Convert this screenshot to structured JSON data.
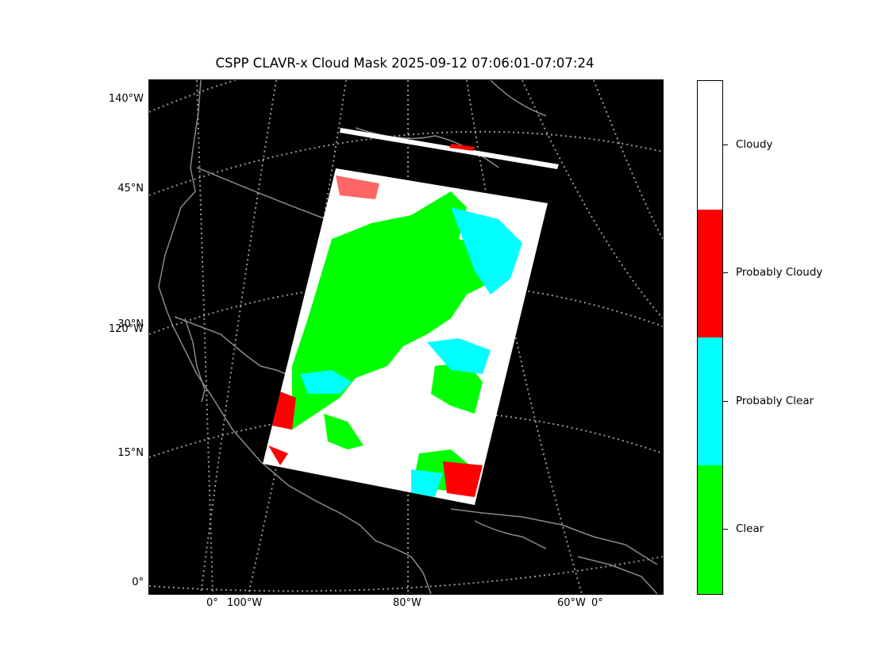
{
  "title": "CSPP CLAVR-x Cloud Mask 2025-09-12 07:06:01-07:07:24",
  "map": {
    "background_color": "#000000",
    "graticule_color": "#999999",
    "coastline_color": "#888888",
    "lat_labels": [
      "140°W",
      "45°N",
      "30°N",
      "120°W",
      "15°N",
      "0°"
    ],
    "lon_labels": [
      "0°",
      "100°W",
      "80°W",
      "60°W",
      "0°"
    ]
  },
  "legend": {
    "categories": [
      {
        "label": "Cloudy",
        "color": "#ffffff"
      },
      {
        "label": "Probably Cloudy",
        "color": "#ff0000"
      },
      {
        "label": "Probably Clear",
        "color": "#00ffff"
      },
      {
        "label": "Clear",
        "color": "#00ff00"
      }
    ]
  }
}
